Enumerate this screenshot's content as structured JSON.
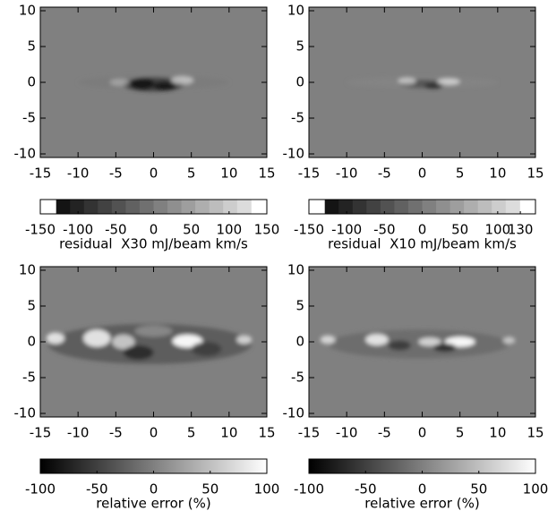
{
  "chart_data": [
    {
      "type": "image",
      "xlim": [
        -15,
        15
      ],
      "ylim": [
        -10.5,
        10.5
      ],
      "xticks": [
        -15,
        -10,
        -5,
        0,
        5,
        10,
        15
      ],
      "yticks": [
        -10,
        -5,
        0,
        5,
        10
      ],
      "colorbar": {
        "lim": [
          -150,
          150
        ],
        "ticks": [
          -150,
          -100,
          -50,
          0,
          50,
          100,
          150
        ],
        "label": "residual  X30 mJ/beam km/s"
      }
    },
    {
      "type": "image",
      "xlim": [
        -15,
        15
      ],
      "ylim": [
        -10.5,
        10.5
      ],
      "xticks": [
        -15,
        -10,
        -5,
        0,
        5,
        10,
        15
      ],
      "yticks": [
        -10,
        -5,
        0,
        5,
        10
      ],
      "colorbar": {
        "lim": [
          -150,
          150
        ],
        "ticks": [
          -150,
          -100,
          -50,
          0,
          50,
          100,
          130
        ],
        "label": "residual  X10 mJ/beam km/s"
      }
    },
    {
      "type": "image",
      "xlim": [
        -15,
        15
      ],
      "ylim": [
        -10.5,
        10.5
      ],
      "xticks": [
        -15,
        -10,
        -5,
        0,
        5,
        10,
        15
      ],
      "yticks": [
        -10,
        -5,
        0,
        5,
        10
      ],
      "colorbar": {
        "lim": [
          -100,
          100
        ],
        "ticks": [
          -100,
          -50,
          0,
          50,
          100
        ],
        "label": "relative error (%)"
      }
    },
    {
      "type": "image",
      "xlim": [
        -15,
        15
      ],
      "ylim": [
        -10.5,
        10.5
      ],
      "xticks": [
        -15,
        -10,
        -5,
        0,
        5,
        10,
        15
      ],
      "yticks": [
        -10,
        -5,
        0,
        5,
        10
      ],
      "colorbar": {
        "lim": [
          -100,
          100
        ],
        "ticks": [
          -100,
          -50,
          0,
          50,
          100
        ],
        "label": "relative error (%)"
      }
    }
  ]
}
